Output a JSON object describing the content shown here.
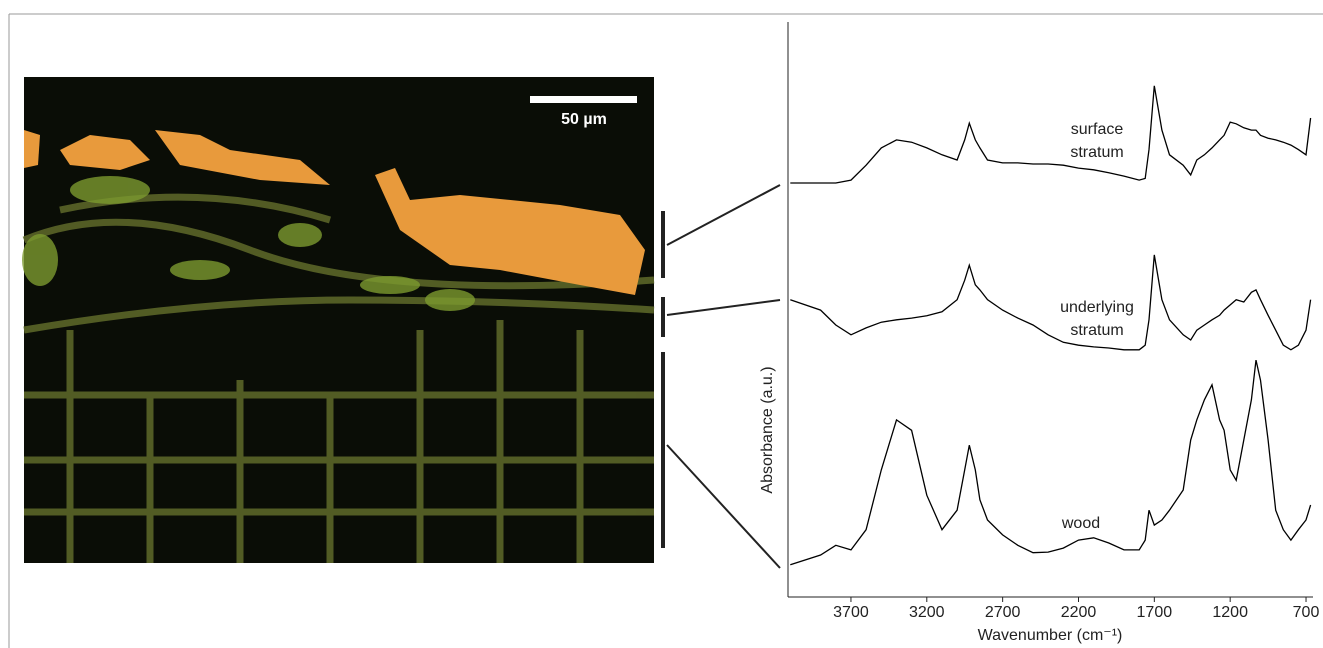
{
  "micrograph": {
    "scale_label": "50 µm"
  },
  "chart_data": {
    "type": "line",
    "x_label": "Wavenumber (cm⁻¹)",
    "y_label": "Absorbance (a.u.)",
    "x": [
      4100,
      3900,
      3800,
      3700,
      3600,
      3500,
      3400,
      3300,
      3200,
      3100,
      3000,
      2950,
      2920,
      2880,
      2850,
      2800,
      2700,
      2600,
      2500,
      2400,
      2300,
      2200,
      2100,
      2000,
      1900,
      1800,
      1760,
      1735,
      1700,
      1650,
      1600,
      1510,
      1460,
      1420,
      1370,
      1320,
      1270,
      1240,
      1200,
      1160,
      1110,
      1060,
      1030,
      1000,
      950,
      900,
      850,
      800,
      750,
      700,
      670
    ],
    "xlim": [
      4115,
      654
    ],
    "xticks": [
      3700,
      3200,
      2700,
      2200,
      1700,
      1200,
      700
    ],
    "ylim": [
      0,
      100
    ],
    "series": [
      {
        "name": "surface stratum",
        "color": "#000000",
        "values": [
          72.0,
          72.0,
          72.0,
          72.5,
          75.1,
          78.1,
          79.5,
          79.1,
          78.1,
          76.9,
          76.0,
          79.5,
          82.4,
          79.5,
          78.1,
          76.0,
          75.5,
          75.5,
          75.3,
          75.3,
          75.1,
          74.6,
          74.3,
          73.8,
          73.2,
          72.5,
          72.8,
          77.8,
          88.9,
          81.2,
          76.9,
          75.1,
          73.4,
          76.0,
          76.9,
          78.1,
          79.5,
          80.3,
          82.6,
          82.3,
          81.6,
          81.2,
          81.2,
          80.3,
          79.8,
          79.5,
          79.1,
          78.6,
          77.8,
          76.9,
          83.3
        ]
      },
      {
        "name": "underlying stratum",
        "color": "#000000",
        "values": [
          51.7,
          49.9,
          47.3,
          45.6,
          46.8,
          47.8,
          48.2,
          48.5,
          48.9,
          49.6,
          51.7,
          55.1,
          57.7,
          54.3,
          53.4,
          51.7,
          49.9,
          48.5,
          47.3,
          45.6,
          44.3,
          43.8,
          43.5,
          43.3,
          43.0,
          43.0,
          43.8,
          48.2,
          59.5,
          51.7,
          48.2,
          45.6,
          44.7,
          46.4,
          47.3,
          48.2,
          49.0,
          49.9,
          50.8,
          51.7,
          51.3,
          53.0,
          53.4,
          51.7,
          49.0,
          46.4,
          43.8,
          43.0,
          43.8,
          46.4,
          51.7
        ]
      },
      {
        "name": "wood",
        "color": "#000000",
        "values": [
          5.6,
          7.3,
          9.0,
          8.2,
          11.7,
          22.1,
          30.8,
          29.0,
          17.7,
          11.7,
          15.1,
          22.1,
          26.4,
          22.1,
          16.9,
          13.4,
          10.8,
          9.0,
          7.7,
          7.8,
          8.5,
          9.9,
          10.3,
          9.4,
          8.2,
          8.2,
          9.9,
          15.1,
          12.5,
          13.4,
          15.1,
          18.6,
          27.3,
          30.8,
          34.3,
          36.9,
          30.8,
          29.0,
          22.1,
          20.3,
          27.3,
          34.3,
          41.2,
          37.7,
          27.3,
          15.1,
          11.7,
          9.9,
          11.7,
          13.4,
          16.0
        ]
      }
    ]
  }
}
